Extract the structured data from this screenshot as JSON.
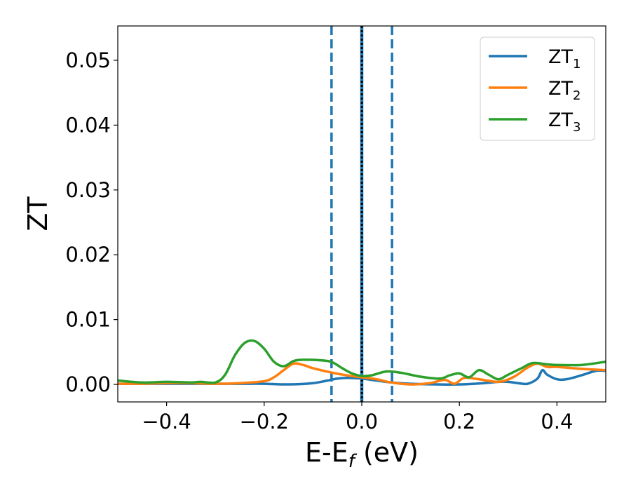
{
  "chart_data": {
    "type": "line",
    "title": "",
    "xlabel": "E-E",
    "xlabel_sub": "f",
    "xlabel_unit": " (eV)",
    "ylabel": "ZT",
    "xlim": [
      -0.5,
      0.5
    ],
    "ylim": [
      -0.0027,
      0.0553
    ],
    "xticks": [
      -0.4,
      -0.2,
      0.0,
      0.2,
      0.4
    ],
    "xtick_labels": [
      "−0.4",
      "−0.2",
      "0.0",
      "0.2",
      "0.4"
    ],
    "yticks": [
      0.0,
      0.01,
      0.02,
      0.03,
      0.04,
      0.05
    ],
    "ytick_labels": [
      "0.00",
      "0.01",
      "0.02",
      "0.03",
      "0.04",
      "0.05"
    ],
    "grid": false,
    "legend_position": "top-right",
    "vlines": [
      {
        "x": -0.062,
        "style": "dashed",
        "color": "#1f77b4"
      },
      {
        "x": 0.062,
        "style": "dashed",
        "color": "#1f77b4"
      },
      {
        "x": 0.0,
        "style": "solid",
        "color": "#1f77b4"
      },
      {
        "x": 0.0,
        "style": "dotted",
        "color": "#000000"
      }
    ],
    "series": [
      {
        "name": "ZT",
        "name_sub": "1",
        "color": "#1f77b4",
        "x": [
          -0.5,
          -0.45,
          -0.4,
          -0.35,
          -0.3,
          -0.25,
          -0.2,
          -0.15,
          -0.1,
          -0.07,
          -0.05,
          -0.03,
          0.0,
          0.03,
          0.06,
          0.1,
          0.15,
          0.2,
          0.25,
          0.28,
          0.3,
          0.32,
          0.34,
          0.36,
          0.37,
          0.38,
          0.4,
          0.42,
          0.45,
          0.48,
          0.5
        ],
        "y": [
          0.0001,
          0.0001,
          0.0001,
          0.0001,
          0.0001,
          0.0001,
          0.0001,
          0.0,
          0.0002,
          0.0006,
          0.0009,
          0.001,
          0.0009,
          0.0006,
          0.0003,
          0.0001,
          0.0,
          0.0,
          0.0002,
          0.0004,
          0.0004,
          0.0002,
          0.0001,
          0.0009,
          0.0022,
          0.0015,
          0.0008,
          0.0008,
          0.0014,
          0.0021,
          0.0021
        ]
      },
      {
        "name": "ZT",
        "name_sub": "2",
        "color": "#ff7f0e",
        "x": [
          -0.5,
          -0.45,
          -0.4,
          -0.35,
          -0.3,
          -0.25,
          -0.2,
          -0.18,
          -0.16,
          -0.14,
          -0.12,
          -0.1,
          -0.06,
          -0.03,
          0.0,
          0.03,
          0.06,
          0.1,
          0.14,
          0.17,
          0.19,
          0.21,
          0.24,
          0.28,
          0.31,
          0.34,
          0.36,
          0.38,
          0.4,
          0.45,
          0.5
        ],
        "y": [
          0.0001,
          0.0001,
          0.0002,
          0.0002,
          0.0001,
          0.0002,
          0.0005,
          0.0011,
          0.0022,
          0.0032,
          0.003,
          0.0025,
          0.0018,
          0.0014,
          0.0011,
          0.0008,
          0.0003,
          0.0,
          0.0002,
          0.0007,
          0.0001,
          0.001,
          0.0008,
          0.0004,
          0.0011,
          0.0026,
          0.0032,
          0.0027,
          0.0027,
          0.0024,
          0.0022
        ]
      },
      {
        "name": "ZT",
        "name_sub": "3",
        "color": "#2ca02c",
        "x": [
          -0.5,
          -0.45,
          -0.4,
          -0.35,
          -0.33,
          -0.3,
          -0.28,
          -0.26,
          -0.24,
          -0.22,
          -0.2,
          -0.18,
          -0.16,
          -0.14,
          -0.12,
          -0.08,
          -0.06,
          -0.04,
          -0.02,
          0.0,
          0.02,
          0.05,
          0.08,
          0.12,
          0.16,
          0.18,
          0.2,
          0.22,
          0.24,
          0.26,
          0.28,
          0.3,
          0.33,
          0.35,
          0.38,
          0.4,
          0.45,
          0.5
        ],
        "y": [
          0.0006,
          0.0003,
          0.0004,
          0.0003,
          0.0004,
          0.0003,
          0.0015,
          0.0045,
          0.0064,
          0.0067,
          0.0055,
          0.0035,
          0.0028,
          0.0036,
          0.0038,
          0.0037,
          0.0034,
          0.0025,
          0.0017,
          0.0013,
          0.0014,
          0.002,
          0.0018,
          0.0012,
          0.0009,
          0.0014,
          0.0017,
          0.0011,
          0.0022,
          0.0015,
          0.0008,
          0.0015,
          0.0026,
          0.0033,
          0.0031,
          0.003,
          0.003,
          0.0035
        ]
      }
    ]
  }
}
